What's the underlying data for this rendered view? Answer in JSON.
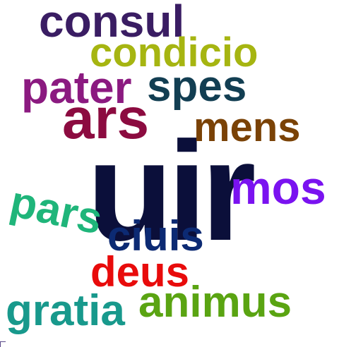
{
  "words": [
    {
      "text": "consul",
      "color": "#3a1d63"
    },
    {
      "text": "condicio",
      "color": "#a6b511"
    },
    {
      "text": "pater",
      "color": "#8b1a80"
    },
    {
      "text": "spes",
      "color": "#123e52"
    },
    {
      "text": "ars",
      "color": "#8c0b40"
    },
    {
      "text": "mens",
      "color": "#7a4206"
    },
    {
      "text": "uir",
      "color": "#0b0f3a"
    },
    {
      "text": "mos",
      "color": "#7a12f0"
    },
    {
      "text": "pars",
      "color": "#1fb57a"
    },
    {
      "text": "ciuis",
      "color": "#0c2a73"
    },
    {
      "text": "deus",
      "color": "#e80b0b"
    },
    {
      "text": "gratia",
      "color": "#18998c"
    },
    {
      "text": "animus",
      "color": "#5aa412"
    }
  ]
}
